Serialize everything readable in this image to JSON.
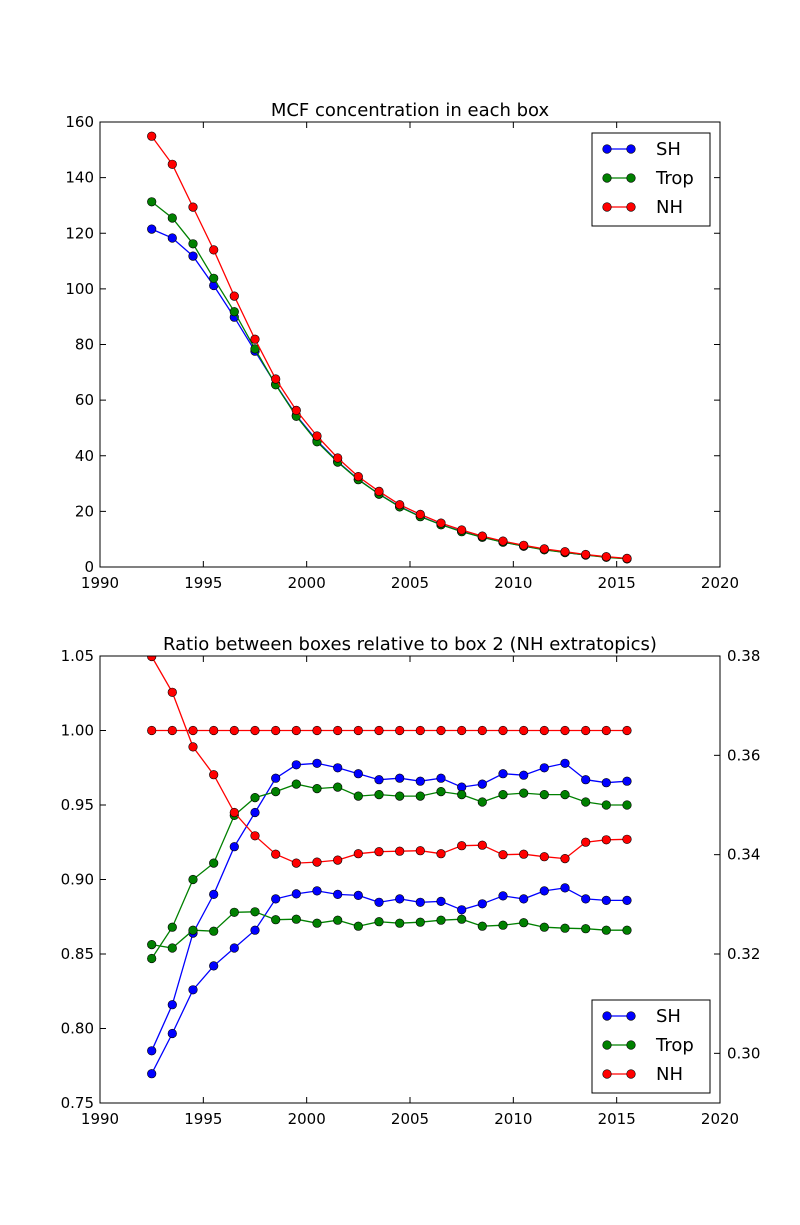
{
  "chart_data": [
    {
      "type": "line",
      "title": "MCF concentration in each box",
      "xlabel": "",
      "ylabel": "",
      "xlim": [
        1990,
        2020
      ],
      "ylim": [
        0,
        160
      ],
      "xticks": [
        "1990",
        "1995",
        "2000",
        "2005",
        "2010",
        "2015",
        "2020"
      ],
      "yticks": [
        "0",
        "20",
        "40",
        "60",
        "80",
        "100",
        "120",
        "140",
        "160"
      ],
      "legend_position": "top-right",
      "grid": false,
      "x": [
        1992.5,
        1993.5,
        1994.5,
        1995.5,
        1996.5,
        1997.5,
        1998.5,
        1999.5,
        2000.5,
        2001.5,
        2002.5,
        2003.5,
        2004.5,
        2005.5,
        2006.5,
        2007.5,
        2008.5,
        2009.5,
        2010.5,
        2011.5,
        2012.5,
        2013.5,
        2014.5,
        2015.5
      ],
      "series": [
        {
          "name": "SH",
          "color": "#0000ff",
          "values": [
            121.5,
            118.3,
            111.8,
            101.2,
            89.8,
            77.6,
            65.7,
            54.5,
            45.4,
            37.9,
            31.5,
            26.2,
            21.7,
            18.2,
            15.2,
            12.8,
            10.7,
            9.0,
            7.5,
            6.3,
            5.2,
            4.3,
            3.6,
            3.0
          ]
        },
        {
          "name": "Trop",
          "color": "#008000",
          "values": [
            131.3,
            125.5,
            116.2,
            103.8,
            91.8,
            78.4,
            65.5,
            54.2,
            45.0,
            37.7,
            31.4,
            26.2,
            21.6,
            18.1,
            15.2,
            12.7,
            10.7,
            8.9,
            7.5,
            6.2,
            5.2,
            4.3,
            3.5,
            2.9
          ]
        },
        {
          "name": "NH",
          "color": "#ff0000",
          "values": [
            154.9,
            144.8,
            129.4,
            114.0,
            97.4,
            81.9,
            67.6,
            56.3,
            47.1,
            39.2,
            32.5,
            27.2,
            22.4,
            18.9,
            15.8,
            13.3,
            11.1,
            9.3,
            7.8,
            6.5,
            5.5,
            4.5,
            3.7,
            3.1
          ]
        }
      ]
    },
    {
      "type": "line",
      "title": "Ratio between boxes relative to box 2 (NH extratopics)",
      "xlabel": "",
      "ylabel": "",
      "xlim": [
        1990,
        2020
      ],
      "ylim": [
        0.75,
        1.05
      ],
      "y2lim": [
        0.29,
        0.38
      ],
      "xticks": [
        "1990",
        "1995",
        "2000",
        "2005",
        "2010",
        "2015",
        "2020"
      ],
      "yticks": [
        "0.75",
        "0.80",
        "0.85",
        "0.90",
        "0.95",
        "1.00",
        "1.05"
      ],
      "y2ticks": [
        "0.30",
        "0.32",
        "0.34",
        "0.36",
        "0.38"
      ],
      "legend_position": "bottom-right",
      "grid": false,
      "x": [
        1992.5,
        1993.5,
        1994.5,
        1995.5,
        1996.5,
        1997.5,
        1998.5,
        1999.5,
        2000.5,
        2001.5,
        2002.5,
        2003.5,
        2004.5,
        2005.5,
        2006.5,
        2007.5,
        2008.5,
        2009.5,
        2010.5,
        2011.5,
        2012.5,
        2013.5,
        2014.5,
        2015.5
      ],
      "series": [
        {
          "name": "SH",
          "color": "#0000ff",
          "axis": "left",
          "values": [
            0.785,
            0.816,
            0.864,
            0.89,
            0.922,
            0.945,
            0.968,
            0.977,
            0.978,
            0.975,
            0.971,
            0.967,
            0.968,
            0.966,
            0.968,
            0.962,
            0.964,
            0.971,
            0.97,
            0.975,
            0.978,
            0.967,
            0.965,
            0.966
          ]
        },
        {
          "name": "Trop",
          "color": "#008000",
          "axis": "left",
          "values": [
            0.847,
            0.868,
            0.9,
            0.911,
            0.943,
            0.955,
            0.959,
            0.964,
            0.961,
            0.962,
            0.956,
            0.957,
            0.956,
            0.956,
            0.959,
            0.957,
            0.952,
            0.957,
            0.958,
            0.957,
            0.957,
            0.952,
            0.95,
            0.95
          ]
        },
        {
          "name": "NH",
          "color": "#ff0000",
          "axis": "left",
          "values": [
            1.0,
            1.0,
            1.0,
            1.0,
            1.0,
            1.0,
            1.0,
            1.0,
            1.0,
            1.0,
            1.0,
            1.0,
            1.0,
            1.0,
            1.0,
            1.0,
            1.0,
            1.0,
            1.0,
            1.0,
            1.0,
            1.0,
            1.0,
            1.0
          ]
        },
        {
          "name": "SH",
          "color": "#0000ff",
          "axis": "right",
          "values": [
            0.2959,
            0.304,
            0.3128,
            0.3176,
            0.3212,
            0.3248,
            0.3311,
            0.3321,
            0.3327,
            0.332,
            0.3318,
            0.3304,
            0.3311,
            0.3304,
            0.3306,
            0.3289,
            0.3301,
            0.3317,
            0.3311,
            0.3327,
            0.3333,
            0.3311,
            0.3308,
            0.3308
          ]
        },
        {
          "name": "Trop",
          "color": "#008000",
          "axis": "right",
          "values": [
            0.3219,
            0.3212,
            0.3248,
            0.3246,
            0.3284,
            0.3285,
            0.3269,
            0.327,
            0.3262,
            0.3268,
            0.3256,
            0.3265,
            0.3262,
            0.3264,
            0.3268,
            0.327,
            0.3256,
            0.3258,
            0.3263,
            0.3254,
            0.3252,
            0.3251,
            0.3248,
            0.3248
          ]
        },
        {
          "name": "NH",
          "color": "#ff0000",
          "axis": "right",
          "values": [
            0.3799,
            0.3727,
            0.3617,
            0.3561,
            0.3485,
            0.3438,
            0.3401,
            0.3383,
            0.3385,
            0.3389,
            0.3402,
            0.3406,
            0.3407,
            0.3408,
            0.3402,
            0.3418,
            0.3419,
            0.34,
            0.3401,
            0.3396,
            0.3392,
            0.3425,
            0.343,
            0.3431
          ]
        }
      ]
    }
  ]
}
